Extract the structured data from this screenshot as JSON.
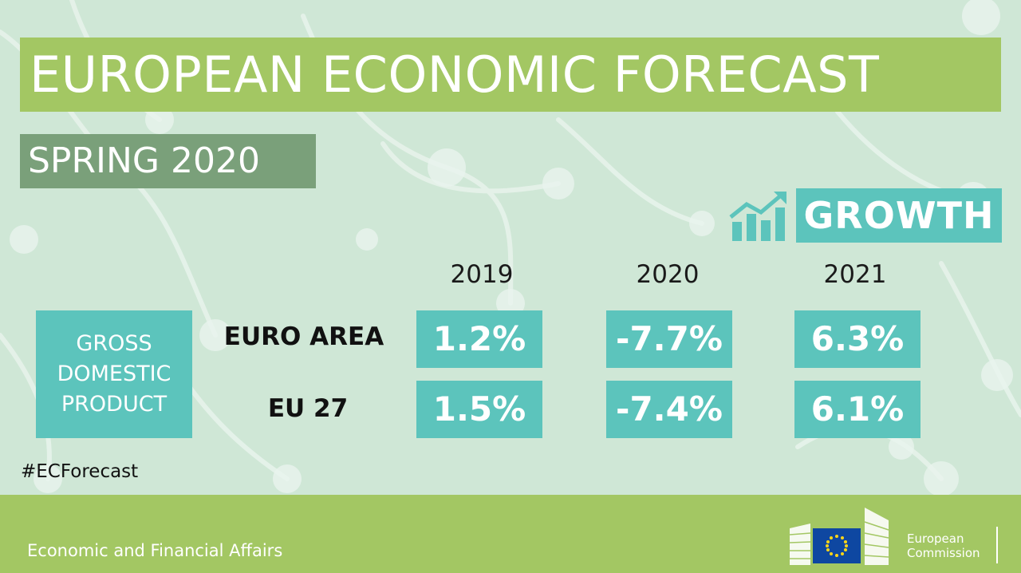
{
  "title": "EUROPEAN ECONOMIC FORECAST",
  "subtitle": "SPRING 2020",
  "section": {
    "label": "GROWTH",
    "icon": "growth-chart-icon"
  },
  "table": {
    "years": [
      "2019",
      "2020",
      "2021"
    ],
    "indicator_lines": [
      "GROSS",
      "DOMESTIC",
      "PRODUCT"
    ],
    "rows": [
      {
        "label": "EURO AREA",
        "values": [
          "1.2%",
          "-7.7%",
          "6.3%"
        ]
      },
      {
        "label": "EU 27",
        "values": [
          "1.5%",
          "-7.4%",
          "6.1%"
        ]
      }
    ]
  },
  "hashtag": "#ECForecast",
  "footer": {
    "department": "Economic and Financial Affairs",
    "logo_lines": [
      "European",
      "Commission"
    ]
  },
  "colors": {
    "background": "#cfe7d6",
    "banner_green": "#a3c763",
    "subtitle_green": "#7aa07a",
    "teal": "#5cc4bc",
    "eu_blue": "#0e47a1",
    "eu_star": "#ffd617"
  }
}
